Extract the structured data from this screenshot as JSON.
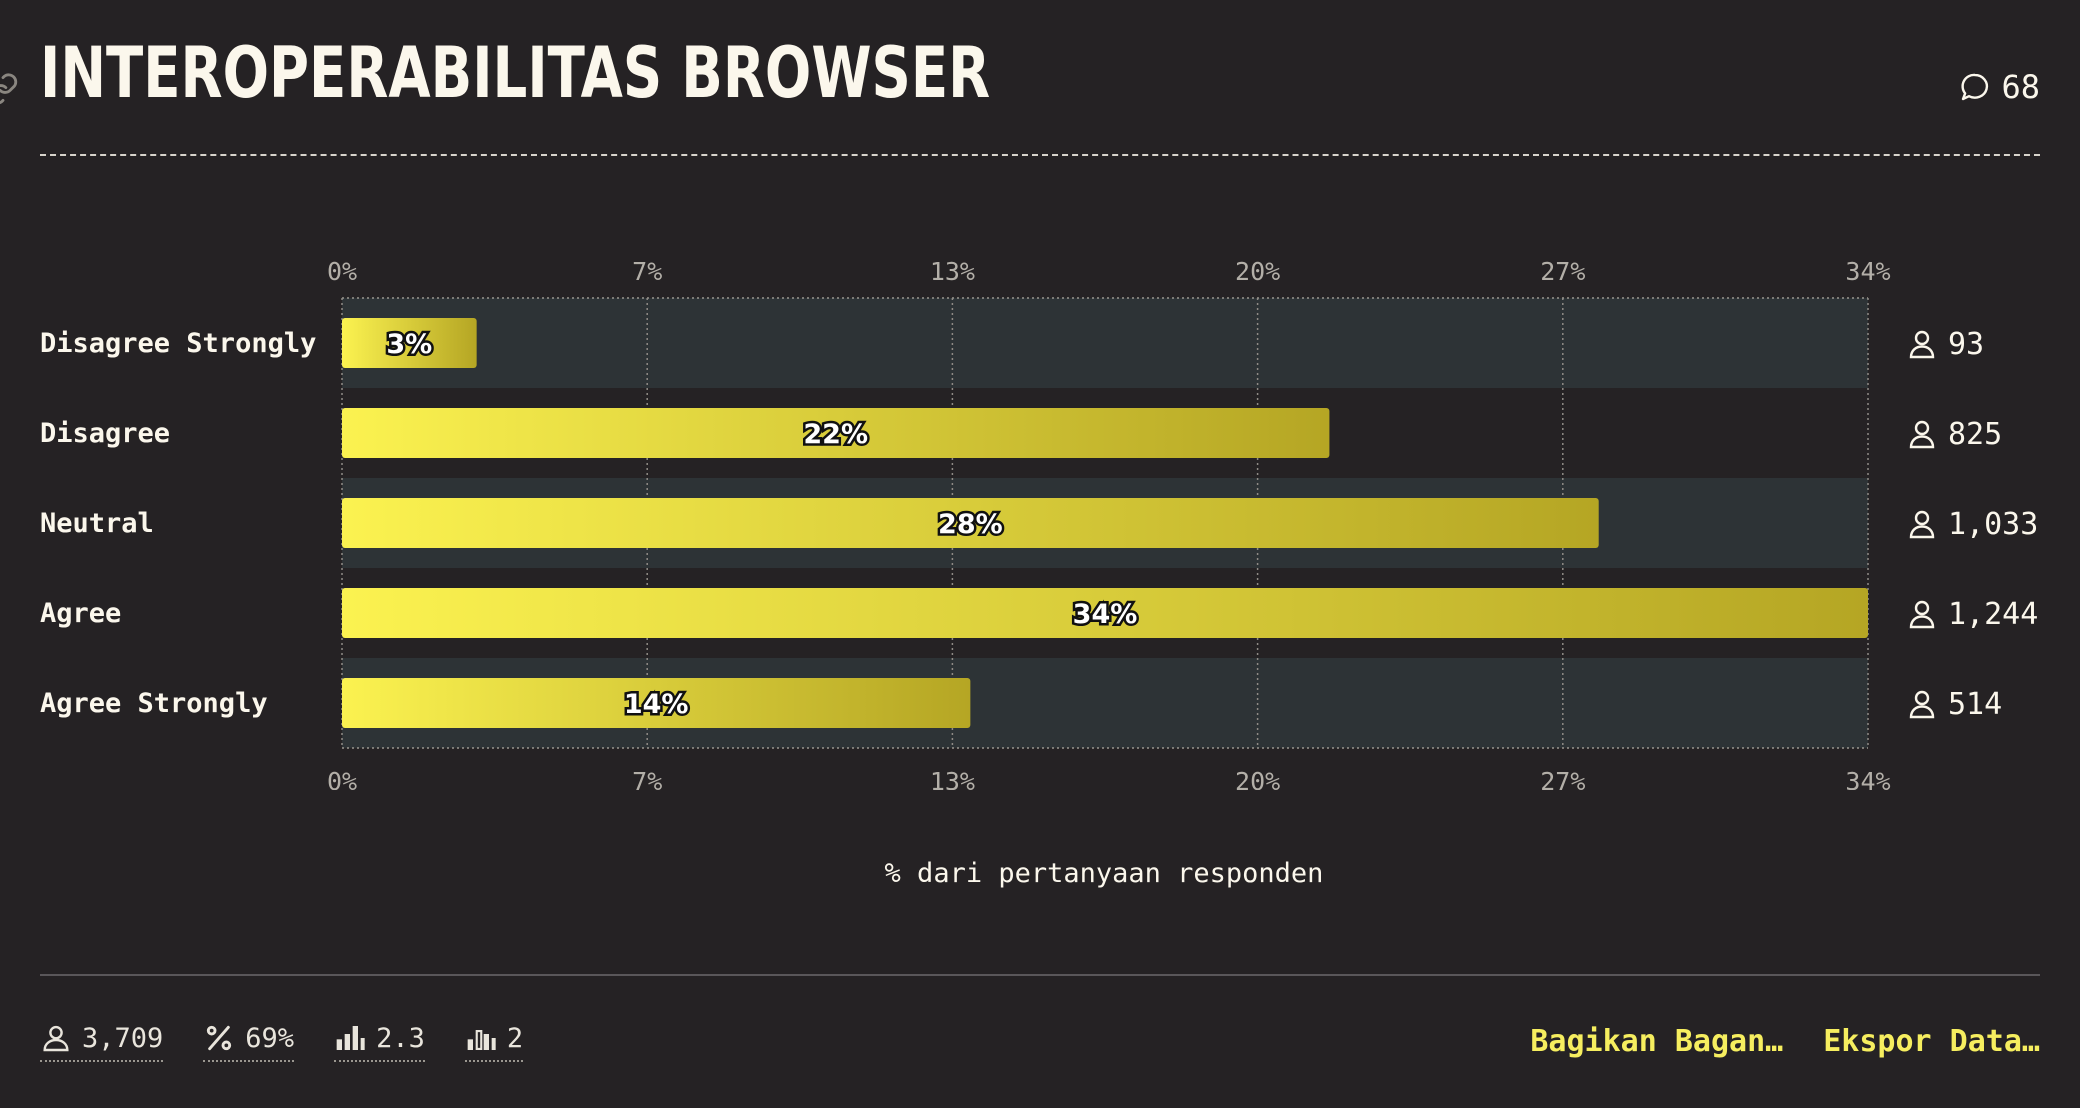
{
  "header": {
    "title": "INTEROPERABILITAS BROWSER",
    "comment_count": "68"
  },
  "chart_data": {
    "type": "bar",
    "orientation": "horizontal",
    "title": "INTEROPERABILITAS BROWSER",
    "categories": [
      "Disagree Strongly",
      "Disagree",
      "Neutral",
      "Agree",
      "Agree Strongly"
    ],
    "values": [
      3,
      22,
      28,
      34,
      14
    ],
    "value_labels": [
      "3%",
      "22%",
      "28%",
      "34%",
      "14%"
    ],
    "counts": [
      "93",
      "825",
      "1,033",
      "1,244",
      "514"
    ],
    "count_values": [
      93,
      825,
      1033,
      1244,
      514
    ],
    "xlim": [
      0,
      34
    ],
    "xticks": [
      "0%",
      "7%",
      "13%",
      "20%",
      "27%",
      "34%"
    ],
    "xlabel": "% dari pertanyaan responden",
    "grid": true,
    "colors": {
      "bar_start": "#fbf250",
      "bar_end": "#b5a624",
      "band": "#2d3336",
      "background": "#252224"
    }
  },
  "footer": {
    "stats": [
      {
        "icon": "user-icon",
        "value": "3,709"
      },
      {
        "icon": "percent-icon",
        "value": "69%"
      },
      {
        "icon": "bar-chart-icon",
        "value": "2.3"
      },
      {
        "icon": "bar-chart-outline-icon",
        "value": "2"
      }
    ],
    "share_label": "Bagikan Bagan…",
    "export_label": "Ekspor Data…"
  }
}
